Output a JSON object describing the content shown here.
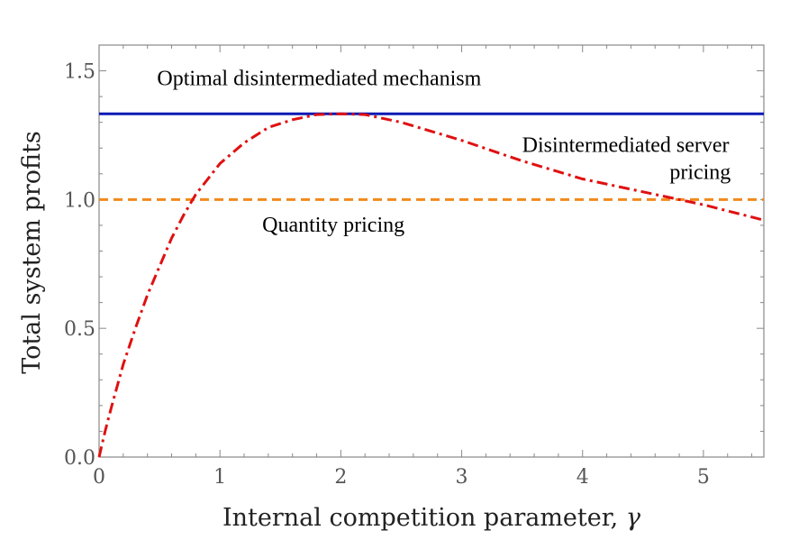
{
  "chart_data": {
    "type": "line",
    "xlabel": "Internal competition parameter, ",
    "xlabel_symbol": "γ",
    "ylabel": "Total system profits",
    "xlim": [
      0,
      5.5
    ],
    "ylim": [
      0,
      1.6
    ],
    "x_ticks": [
      {
        "value": 0,
        "label": "0"
      },
      {
        "value": 1,
        "label": "1"
      },
      {
        "value": 2,
        "label": "2"
      },
      {
        "value": 3,
        "label": "3"
      },
      {
        "value": 4,
        "label": "4"
      },
      {
        "value": 5,
        "label": "5"
      }
    ],
    "y_ticks": [
      {
        "value": 0,
        "label": "0.0"
      },
      {
        "value": 0.5,
        "label": "0.5"
      },
      {
        "value": 1.0,
        "label": "1.0"
      },
      {
        "value": 1.5,
        "label": "1.5"
      }
    ],
    "series": [
      {
        "name": "Optimal disintermediated mechanism",
        "color": "#0a1ab4",
        "style": "solid",
        "x": [
          0,
          5.5
        ],
        "y": [
          1.333,
          1.333
        ]
      },
      {
        "name": "Quantity pricing",
        "color": "#f08a1c",
        "style": "dashed",
        "x": [
          0,
          5.5
        ],
        "y": [
          1.0,
          1.0
        ]
      },
      {
        "name": "Disintermediated server pricing",
        "color": "#e01010",
        "style": "dashdot",
        "x": [
          0,
          0.05,
          0.1,
          0.2,
          0.3,
          0.4,
          0.5,
          0.6,
          0.7,
          0.8,
          1.0,
          1.2,
          1.4,
          1.6,
          1.8,
          2.0,
          2.2,
          2.5,
          3.0,
          3.5,
          4.0,
          4.5,
          5.0,
          5.5
        ],
        "y": [
          0.0,
          0.1,
          0.19,
          0.36,
          0.5,
          0.63,
          0.74,
          0.85,
          0.94,
          1.02,
          1.14,
          1.22,
          1.28,
          1.31,
          1.33,
          1.333,
          1.33,
          1.3,
          1.23,
          1.15,
          1.08,
          1.03,
          0.98,
          0.92
        ]
      }
    ],
    "annotations": [
      {
        "text": "Optimal disintermediated mechanism",
        "x": 0.48,
        "y": 1.445
      },
      {
        "text": "Disintermediated server",
        "x": 3.5,
        "y": 1.185
      },
      {
        "text": "pricing",
        "x": 4.72,
        "y": 1.08
      },
      {
        "text": "Quantity pricing",
        "x": 1.35,
        "y": 0.875
      }
    ],
    "grid": false
  }
}
